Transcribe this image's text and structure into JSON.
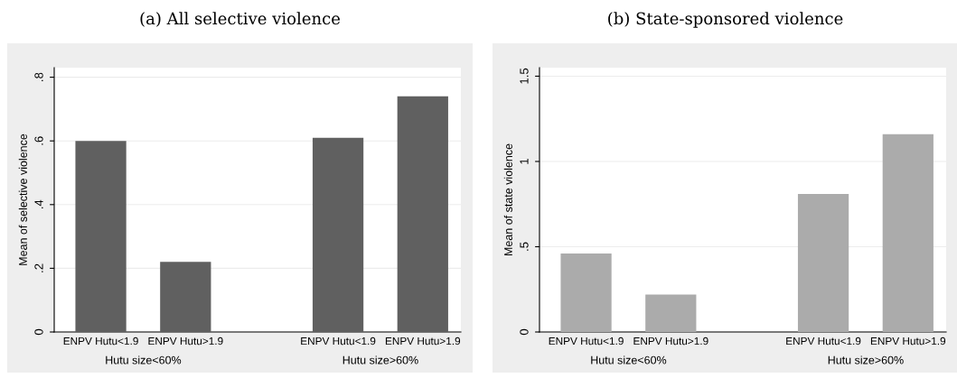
{
  "chart_data": [
    {
      "type": "bar",
      "title": "(a) All selective violence",
      "ylabel": "Mean of selective violence",
      "categories": [
        "ENPV Hutu<1.9",
        "ENPV Hutu>1.9",
        "ENPV Hutu<1.9",
        "ENPV Hutu>1.9"
      ],
      "values": [
        0.6,
        0.22,
        0.61,
        0.74
      ],
      "color": "#606060",
      "ylim": [
        0,
        0.83
      ],
      "yticks": [
        {
          "value": 0,
          "label": "0"
        },
        {
          "value": 0.2,
          "label": ".2"
        },
        {
          "value": 0.4,
          "label": ".4"
        },
        {
          "value": 0.6,
          "label": ".6"
        },
        {
          "value": 0.8,
          "label": ".8"
        }
      ],
      "grid": "y",
      "annotations": [
        "Hutu size<60%",
        "Hutu size>60%"
      ]
    },
    {
      "type": "bar",
      "title": "(b) State-sponsored violence",
      "ylabel": "Mean of state violence",
      "categories": [
        "ENPV Hutu<1.9",
        "ENPV Hutu>1.9",
        "ENPV Hutu<1.9",
        "ENPV Hutu>1.9"
      ],
      "values": [
        0.46,
        0.22,
        0.81,
        1.16
      ],
      "color": "#ababab",
      "ylim": [
        0,
        1.55
      ],
      "yticks": [
        {
          "value": 0,
          "label": "0"
        },
        {
          "value": 0.5,
          "label": ".5"
        },
        {
          "value": 1,
          "label": "1"
        },
        {
          "value": 1.5,
          "label": "1.5"
        }
      ],
      "grid": "y",
      "annotations": [
        "Hutu size<60%",
        "Hutu size>60%"
      ]
    }
  ]
}
